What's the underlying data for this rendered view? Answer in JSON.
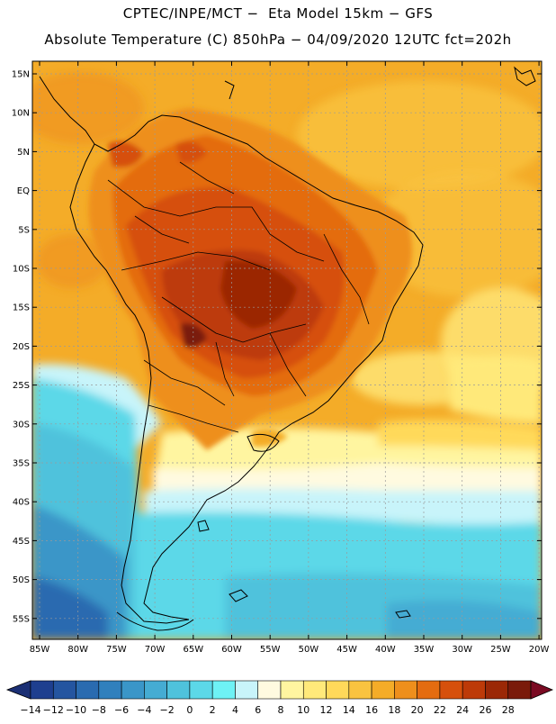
{
  "header": {
    "line1": "CPTEC/INPE/MCT −  Eta Model 15km − GFS",
    "line2": "Absolute Temperature (C) 850hPa − 04/09/2020 12UTC fct=202h"
  },
  "axes": {
    "lat_labels": [
      "15N",
      "10N",
      "5N",
      "EQ",
      "5S",
      "10S",
      "15S",
      "20S",
      "25S",
      "30S",
      "35S",
      "40S",
      "45S",
      "50S",
      "55S"
    ],
    "lon_labels": [
      "85W",
      "80W",
      "75W",
      "70W",
      "65W",
      "60W",
      "55W",
      "50W",
      "45W",
      "40W",
      "35W",
      "30W",
      "25W",
      "20W"
    ]
  },
  "colorbar": {
    "labels": [
      "-14",
      "-12",
      "-10",
      "-8",
      "-6",
      "-4",
      "-2",
      "0",
      "2",
      "4",
      "6",
      "8",
      "10",
      "12",
      "14",
      "16",
      "18",
      "20",
      "22",
      "24",
      "26",
      "28"
    ],
    "colors": [
      "#1e3f8f",
      "#2455a0",
      "#2a6bb0",
      "#3080bd",
      "#3a96c8",
      "#45acd3",
      "#4fc2dc",
      "#5cd8e8",
      "#6ef2f5",
      "#c8f4fa",
      "#fffae0",
      "#fff5a0",
      "#ffe97a",
      "#ffd95a",
      "#f9c340",
      "#f4ac28",
      "#ee8f1c",
      "#e46c10",
      "#d6500c",
      "#bd3a08",
      "#9b2806",
      "#7a1a0a"
    ],
    "under_color": "#1b2f74",
    "over_color": "#7a0a22"
  },
  "map": {
    "background_color": "#f5a623",
    "ocean_south_color": "#5cd3e6",
    "ocean_far_south_color": "#3b95c7",
    "land_hot_color": "#a0440f",
    "coast_color": "#000000"
  }
}
